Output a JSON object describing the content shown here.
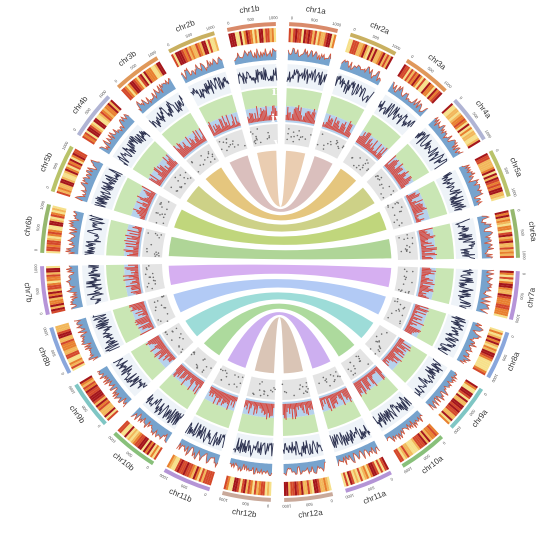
{
  "figure": {
    "chromosomes": [
      {
        "label": "chr1a",
        "color": "#d98a6a"
      },
      {
        "label": "chr2a",
        "color": "#c9b060"
      },
      {
        "label": "chr3a",
        "color": "#e0985a"
      },
      {
        "label": "chr4a",
        "color": "#b0b4d4"
      },
      {
        "label": "chr5a",
        "color": "#b9c36a"
      },
      {
        "label": "chr6a",
        "color": "#96b86e"
      },
      {
        "label": "chr7a",
        "color": "#b694d8"
      },
      {
        "label": "chr8a",
        "color": "#8aa7dc"
      },
      {
        "label": "chr9a",
        "color": "#7fc6c4"
      },
      {
        "label": "chr10a",
        "color": "#88c07a"
      },
      {
        "label": "chr11a",
        "color": "#b494d6"
      },
      {
        "label": "chr12a",
        "color": "#c9a99a"
      },
      {
        "label": "chr12b",
        "color": "#c9a99a"
      },
      {
        "label": "chr11b",
        "color": "#b494d6"
      },
      {
        "label": "chr10b",
        "color": "#88c07a"
      },
      {
        "label": "chr9b",
        "color": "#7fc6c4"
      },
      {
        "label": "chr8b",
        "color": "#8aa7dc"
      },
      {
        "label": "chr7b",
        "color": "#b694d8"
      },
      {
        "label": "chr6b",
        "color": "#96b86e"
      },
      {
        "label": "chr5b",
        "color": "#b9c36a"
      },
      {
        "label": "chr4b",
        "color": "#b0b4d4"
      },
      {
        "label": "chr3b",
        "color": "#e0985a"
      },
      {
        "label": "chr2b",
        "color": "#c9b060"
      },
      {
        "label": "chr1b",
        "color": "#d98a6a"
      }
    ],
    "track_labels": [
      "i",
      "ii",
      "iii",
      "iv",
      "v"
    ],
    "tick_labels": [
      "0",
      "500",
      "1000"
    ],
    "links": [
      {
        "a": "chr1a",
        "b": "chr1b",
        "color": "#e8c8a8"
      },
      {
        "a": "chr2a",
        "b": "chr2b",
        "color": "#d6b8b6"
      },
      {
        "a": "chr3a",
        "b": "chr3b",
        "color": "#e2c070"
      },
      {
        "a": "chr4a",
        "b": "chr4b",
        "color": "#c8cc7a"
      },
      {
        "a": "chr5a",
        "b": "chr5b",
        "color": "#b9d26e"
      },
      {
        "a": "chr6a",
        "b": "chr6b",
        "color": "#a6d08c"
      },
      {
        "a": "chr7a",
        "b": "chr7b",
        "color": "#d2a6f0"
      },
      {
        "a": "chr8a",
        "b": "chr8b",
        "color": "#aac4f4"
      },
      {
        "a": "chr9a",
        "b": "chr9b",
        "color": "#92d8d4"
      },
      {
        "a": "chr10a",
        "b": "chr10b",
        "color": "#a4d692"
      },
      {
        "a": "chr11a",
        "b": "chr11b",
        "color": "#c8a6ee"
      },
      {
        "a": "chr12a",
        "b": "chr12b",
        "color": "#d6bfae"
      }
    ],
    "heat_colors": [
      "#f6e08a",
      "#f2b75a",
      "#e8802f",
      "#d4482a",
      "#a5161b"
    ],
    "track_colors": {
      "density_fill": "#5f93c4",
      "density_line": "#d2553a",
      "line_track": "#2d3250",
      "band_green": "#c9e6b4",
      "band_blue": "#b6d1ec",
      "band_gray": "#d9d9d9",
      "scatter_red": "#d8453a",
      "scatter_gray": "#6c6c6c"
    }
  }
}
